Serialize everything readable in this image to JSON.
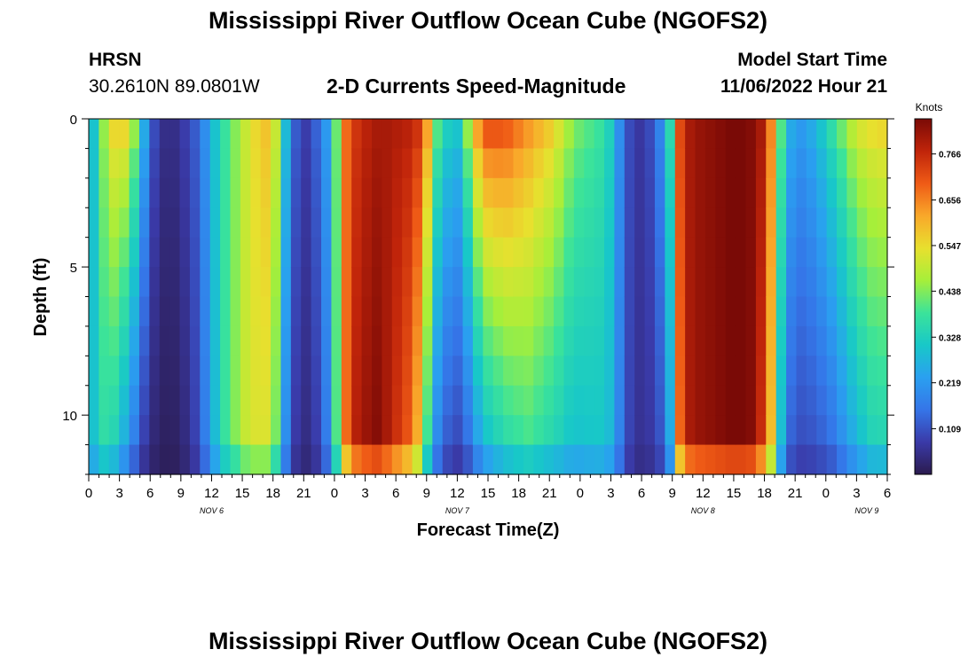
{
  "header": {
    "title": "Mississippi River Outflow Ocean Cube (NGOFS2)",
    "station": "HRSN",
    "coords": "30.2610N  89.0801W",
    "subtitle": "2-D Currents Speed-Magnitude",
    "model_start_label": "Model Start Time",
    "model_start_value": "11/06/2022 Hour 21",
    "bottom_title": "Mississippi River Outflow Ocean Cube (NGOFS2)"
  },
  "chart_data": {
    "type": "heatmap",
    "title": "2-D Currents Speed-Magnitude",
    "xlabel": "Forecast Time(Z)",
    "ylabel": "Depth (ft)",
    "x_start_hour": 0,
    "x_step_hours": 1,
    "x_count": 79,
    "x_tick_labels": [
      "0",
      "3",
      "6",
      "9",
      "12",
      "15",
      "18",
      "21",
      "0",
      "3",
      "6",
      "9",
      "12",
      "15",
      "18",
      "21",
      "0",
      "3",
      "6",
      "9",
      "12",
      "15",
      "18",
      "21",
      "0",
      "3",
      "6"
    ],
    "x_date_labels": [
      {
        "label": "NOV 6",
        "hour": 12
      },
      {
        "label": "NOV 7",
        "hour": 36
      },
      {
        "label": "NOV 8",
        "hour": 60
      },
      {
        "label": "NOV 9",
        "hour": 76
      }
    ],
    "ylim": [
      0,
      12
    ],
    "y_ticks": [
      0,
      5,
      10
    ],
    "depth_levels": 12,
    "colorbar": {
      "label": "Knots",
      "ticks": [
        0.109,
        0.219,
        0.328,
        0.438,
        0.547,
        0.656,
        0.766
      ],
      "range": [
        0.0,
        0.85
      ],
      "colors": [
        "#2b1b4e",
        "#3a3aa8",
        "#3575e8",
        "#2aa0f0",
        "#18c8c8",
        "#3be39a",
        "#a6ef3a",
        "#e8e02e",
        "#f9a82a",
        "#ef5b16",
        "#c0240a",
        "#7a0a06"
      ]
    },
    "grid": false,
    "legend": "right"
  }
}
